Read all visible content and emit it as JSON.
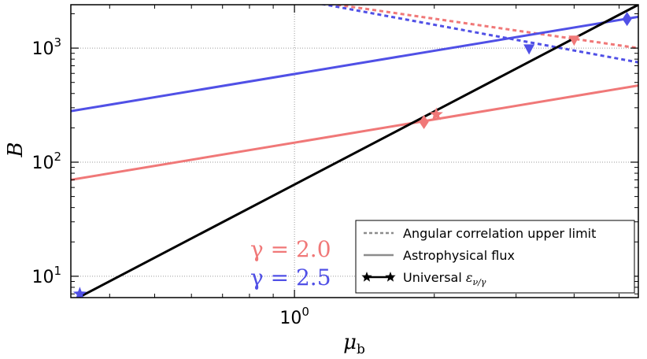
{
  "chart_data": {
    "type": "line",
    "xscale": "log",
    "yscale": "log",
    "xlim": [
      0.33,
      5.5
    ],
    "ylim": [
      6.5,
      2400
    ],
    "xlabel": "μ_b",
    "ylabel": "B",
    "grid": true,
    "xticks": [
      {
        "value": 1,
        "base": "10",
        "exp": "0"
      }
    ],
    "yticks": [
      {
        "value": 10,
        "base": "10",
        "exp": "1"
      },
      {
        "value": 100,
        "base": "10",
        "exp": "2"
      },
      {
        "value": 1000,
        "base": "10",
        "exp": "3"
      }
    ],
    "colors": {
      "gamma_2_0": "#f07878",
      "gamma_2_5": "#5050e6",
      "universal": "#000000",
      "grid": "#9a9a9a"
    },
    "series": [
      {
        "group": "gamma_2_0",
        "kind": "dashed",
        "x": [
          0.33,
          5.5
        ],
        "y": [
          5200,
          1000
        ]
      },
      {
        "group": "gamma_2_5",
        "kind": "dashed",
        "x": [
          0.33,
          5.5
        ],
        "y": [
          6200,
          750
        ]
      },
      {
        "group": "gamma_2_0",
        "kind": "solid",
        "x": [
          0.33,
          5.5
        ],
        "y": [
          70,
          470
        ]
      },
      {
        "group": "gamma_2_5",
        "kind": "solid",
        "x": [
          0.33,
          5.5
        ],
        "y": [
          280,
          1880
        ]
      },
      {
        "group": "universal",
        "kind": "solid",
        "x": [
          0.33,
          5.5
        ],
        "y": [
          6.0,
          2400
        ]
      }
    ],
    "markers": [
      {
        "group": "gamma_2_0",
        "shape": "diamond",
        "x": 1.9,
        "y": 225
      },
      {
        "group": "gamma_2_0",
        "shape": "star",
        "x": 2.02,
        "y": 262
      },
      {
        "group": "gamma_2_0",
        "shape": "triangle",
        "x": 4.0,
        "y": 1170
      },
      {
        "group": "gamma_2_5",
        "shape": "star",
        "x": 0.345,
        "y": 7.0
      },
      {
        "group": "gamma_2_5",
        "shape": "triangle",
        "x": 3.2,
        "y": 980
      },
      {
        "group": "gamma_2_5",
        "shape": "diamond",
        "x": 5.2,
        "y": 1800
      }
    ],
    "legend": {
      "position": "lower-right",
      "entries": [
        {
          "style": "dashed",
          "label": "Angular correlation upper limit"
        },
        {
          "style": "solid",
          "label": "Astrophysical flux"
        },
        {
          "style": "star",
          "label": "Universal ",
          "label_math": "ε",
          "label_sub": "ν/γ"
        }
      ]
    },
    "annotations": [
      {
        "group": "gamma_2_0",
        "label": "γ = 2.0"
      },
      {
        "group": "gamma_2_5",
        "label": "γ = 2.5"
      }
    ]
  }
}
